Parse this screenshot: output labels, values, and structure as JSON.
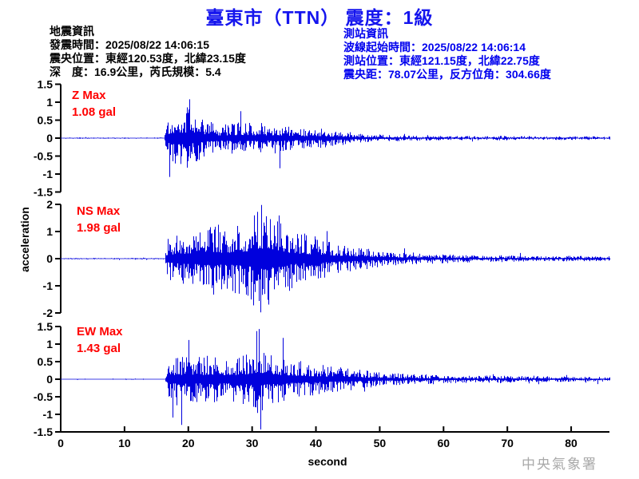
{
  "header": {
    "title": "臺東市（TTN） 震度：1級"
  },
  "event_info": {
    "heading": "地震資訊",
    "lines": [
      "發震時間：2025/08/22 14:06:15",
      "震央位置：東經120.53度，北緯23.15度",
      "深　度：16.9公里，芮氏規模：5.4"
    ]
  },
  "station_info": {
    "heading": "測站資訊",
    "lines": [
      "波線起始時間：2025/08/22 14:06:14",
      "測站位置：東經121.15度，北緯22.75度",
      "震央距：78.07公里，反方位角：304.66度"
    ]
  },
  "chart_data": {
    "type": "line",
    "subtype": "seismogram-3-component",
    "xlabel": "second",
    "ylabel": "acceleration",
    "x_range": [
      0,
      86
    ],
    "x_ticks": [
      0,
      10,
      20,
      30,
      40,
      50,
      60,
      70,
      80
    ],
    "trace_color": "#0000dd",
    "label_color": "#ff0000",
    "axis_color": "#000000",
    "traces": [
      {
        "name": "Z",
        "label": "Z Max",
        "max_label": "1.08 gal",
        "max_gal": 1.08,
        "ylim": [
          -1.5,
          1.5
        ],
        "yticks": [
          1.5,
          1,
          0.5,
          0,
          -0.5,
          -1,
          -1.5
        ],
        "onset_s": 16.4,
        "peak_s": 20.2,
        "peak_sign": 1,
        "envelope": [
          [
            0,
            0.02
          ],
          [
            16.2,
            0.02
          ],
          [
            16.5,
            0.55
          ],
          [
            17.5,
            0.8
          ],
          [
            20,
            1.0
          ],
          [
            21.5,
            0.75
          ],
          [
            23,
            0.55
          ],
          [
            25,
            0.45
          ],
          [
            27.5,
            0.5
          ],
          [
            30,
            0.48
          ],
          [
            32,
            0.42
          ],
          [
            34,
            0.5
          ],
          [
            36,
            0.38
          ],
          [
            38,
            0.32
          ],
          [
            40,
            0.34
          ],
          [
            43,
            0.25
          ],
          [
            46,
            0.18
          ],
          [
            49,
            0.13
          ],
          [
            52,
            0.1
          ],
          [
            56,
            0.08
          ],
          [
            60,
            0.07
          ],
          [
            65,
            0.06
          ],
          [
            70,
            0.07
          ],
          [
            75,
            0.06
          ],
          [
            80,
            0.06
          ],
          [
            86,
            0.05
          ]
        ]
      },
      {
        "name": "NS",
        "label": "NS Max",
        "max_label": "1.98 gal",
        "max_gal": 1.98,
        "ylim": [
          -2,
          2
        ],
        "yticks": [
          2,
          1,
          0,
          -1,
          -2
        ],
        "onset_s": 16.4,
        "peak_s": 31.3,
        "peak_sign": -1,
        "envelope": [
          [
            0,
            0.012
          ],
          [
            16.3,
            0.012
          ],
          [
            16.6,
            0.35
          ],
          [
            18,
            0.42
          ],
          [
            20,
            0.5
          ],
          [
            22,
            0.55
          ],
          [
            24,
            0.65
          ],
          [
            25.5,
            0.55
          ],
          [
            27,
            0.6
          ],
          [
            29,
            0.7
          ],
          [
            30.5,
            0.85
          ],
          [
            31.3,
            1.0
          ],
          [
            32,
            0.8
          ],
          [
            33,
            0.85
          ],
          [
            34.5,
            0.75
          ],
          [
            36,
            0.55
          ],
          [
            38,
            0.45
          ],
          [
            40,
            0.4
          ],
          [
            42,
            0.32
          ],
          [
            45,
            0.25
          ],
          [
            48,
            0.18
          ],
          [
            51,
            0.13
          ],
          [
            55,
            0.1
          ],
          [
            60,
            0.08
          ],
          [
            65,
            0.06
          ],
          [
            70,
            0.06
          ],
          [
            75,
            0.05
          ],
          [
            80,
            0.05
          ],
          [
            86,
            0.04
          ]
        ]
      },
      {
        "name": "EW",
        "label": "EW Max",
        "max_label": "1.43 gal",
        "max_gal": 1.43,
        "ylim": [
          -1.5,
          1.5
        ],
        "yticks": [
          1.5,
          1,
          0.5,
          0,
          -0.5,
          -1,
          -1.5
        ],
        "onset_s": 16.4,
        "peak_s": 31.0,
        "peak_sign": 1,
        "envelope": [
          [
            0,
            0.015
          ],
          [
            16.3,
            0.015
          ],
          [
            16.6,
            0.5
          ],
          [
            18,
            0.62
          ],
          [
            20,
            0.68
          ],
          [
            22,
            0.6
          ],
          [
            23.5,
            0.72
          ],
          [
            25,
            0.6
          ],
          [
            27,
            0.62
          ],
          [
            29,
            0.7
          ],
          [
            31,
            1.0
          ],
          [
            32,
            0.78
          ],
          [
            33.5,
            0.7
          ],
          [
            35,
            0.6
          ],
          [
            37,
            0.5
          ],
          [
            39,
            0.45
          ],
          [
            41,
            0.4
          ],
          [
            44,
            0.33
          ],
          [
            47,
            0.26
          ],
          [
            50,
            0.2
          ],
          [
            53,
            0.16
          ],
          [
            57,
            0.13
          ],
          [
            61,
            0.11
          ],
          [
            66,
            0.1
          ],
          [
            71,
            0.09
          ],
          [
            76,
            0.08
          ],
          [
            81,
            0.07
          ],
          [
            86,
            0.06
          ]
        ]
      }
    ]
  },
  "footer": {
    "agency": "中央氣象署"
  }
}
